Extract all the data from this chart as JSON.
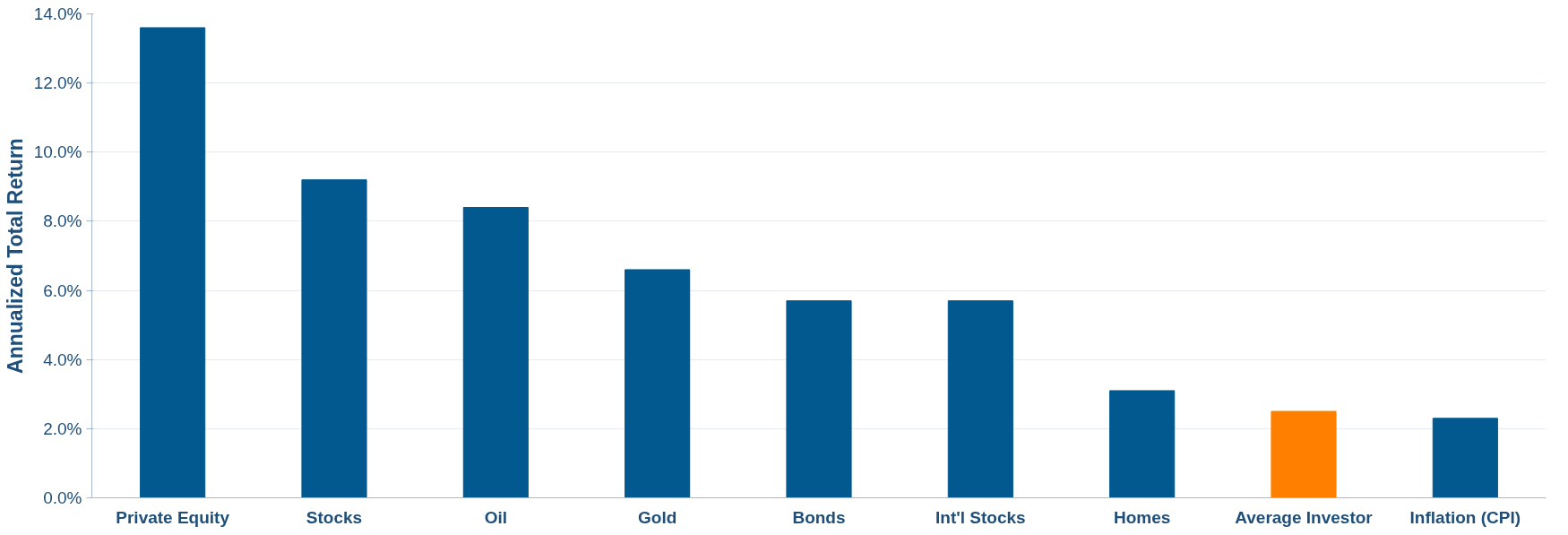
{
  "chart_data": {
    "type": "bar",
    "ylabel": "Annualized Total Return",
    "categories": [
      "Private Equity",
      "Stocks",
      "Oil",
      "Gold",
      "Bonds",
      "Int'l Stocks",
      "Homes",
      "Average Investor",
      "Inflation (CPI)"
    ],
    "values": [
      13.6,
      9.2,
      8.4,
      6.6,
      5.7,
      5.7,
      3.1,
      2.5,
      2.3
    ],
    "colors": [
      "#02598f",
      "#02598f",
      "#02598f",
      "#02598f",
      "#02598f",
      "#02598f",
      "#02598f",
      "#ff7f00",
      "#02598f"
    ],
    "ylim": [
      0,
      14
    ],
    "yticks": [
      {
        "value": 0,
        "label": "0.0%"
      },
      {
        "value": 2,
        "label": "2.0%"
      },
      {
        "value": 4,
        "label": "4.0%"
      },
      {
        "value": 6,
        "label": "6.0%"
      },
      {
        "value": 8,
        "label": "8.0%"
      },
      {
        "value": 10,
        "label": "10.0%"
      },
      {
        "value": 12,
        "label": "12.0%"
      },
      {
        "value": 14,
        "label": "14.0%"
      }
    ],
    "grid": "y"
  }
}
